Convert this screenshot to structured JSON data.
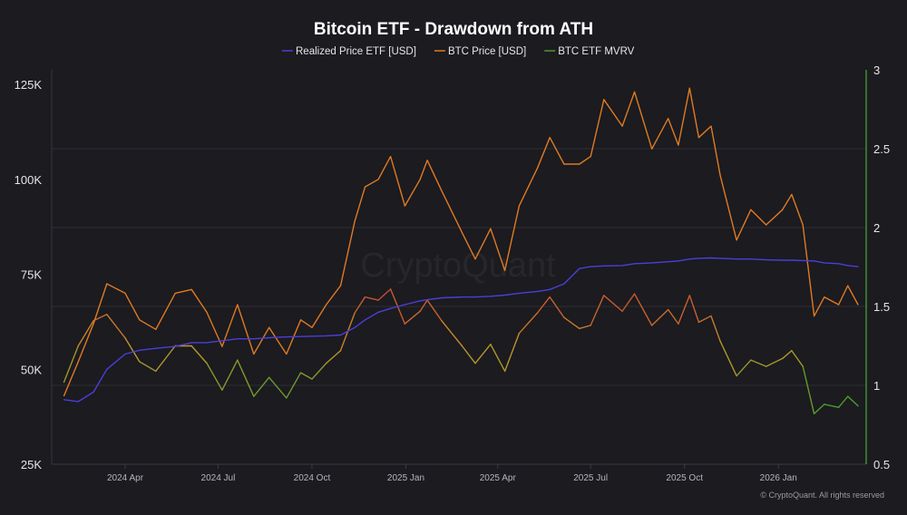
{
  "chart_data": {
    "type": "line",
    "title": "Bitcoin ETF - Drawdown from ATH",
    "legend_position": "top",
    "grid": true,
    "xlim": [
      "2024-01-20",
      "2026-03-28"
    ],
    "x_ticks": [
      {
        "date": "2024-04-01",
        "label": "2024 Apr"
      },
      {
        "date": "2024-07-01",
        "label": "2024 Jul"
      },
      {
        "date": "2024-10-01",
        "label": "2024 Oct"
      },
      {
        "date": "2025-01-01",
        "label": "2025 Jan"
      },
      {
        "date": "2025-04-01",
        "label": "2025 Apr"
      },
      {
        "date": "2025-07-01",
        "label": "2025 Jul"
      },
      {
        "date": "2025-10-01",
        "label": "2025 Oct"
      },
      {
        "date": "2026-01-01",
        "label": "2026 Jan"
      }
    ],
    "y_left": {
      "ylim": [
        25000,
        125000
      ],
      "ticks": [
        25000,
        50000,
        75000,
        100000,
        125000
      ],
      "tick_labels": [
        "25K",
        "50K",
        "75K",
        "100K",
        "125K"
      ]
    },
    "y_right": {
      "ylim": [
        0.5,
        3
      ],
      "ticks": [
        0.5,
        1,
        1.5,
        2,
        2.5,
        3
      ],
      "tick_labels": [
        "0.5",
        "1",
        "1.5",
        "2",
        "2.5",
        "3"
      ]
    },
    "x": [
      "2024-02-01",
      "2024-02-15",
      "2024-03-01",
      "2024-03-14",
      "2024-04-01",
      "2024-04-15",
      "2024-05-01",
      "2024-05-20",
      "2024-06-05",
      "2024-06-20",
      "2024-07-05",
      "2024-07-20",
      "2024-08-05",
      "2024-08-20",
      "2024-09-06",
      "2024-09-20",
      "2024-10-01",
      "2024-10-15",
      "2024-10-29",
      "2024-11-12",
      "2024-11-22",
      "2024-12-05",
      "2024-12-17",
      "2024-12-31",
      "2025-01-15",
      "2025-01-22",
      "2025-02-05",
      "2025-02-25",
      "2025-03-10",
      "2025-03-25",
      "2025-04-08",
      "2025-04-22",
      "2025-05-10",
      "2025-05-22",
      "2025-06-05",
      "2025-06-20",
      "2025-07-01",
      "2025-07-14",
      "2025-08-01",
      "2025-08-13",
      "2025-08-30",
      "2025-09-15",
      "2025-09-25",
      "2025-10-06",
      "2025-10-15",
      "2025-10-27",
      "2025-11-05",
      "2025-11-21",
      "2025-12-05",
      "2025-12-20",
      "2026-01-05",
      "2026-01-14",
      "2026-01-25",
      "2026-02-05",
      "2026-02-15",
      "2026-03-01",
      "2026-03-10",
      "2026-03-20"
    ],
    "series": [
      {
        "name": "Realized Price ETF [USD]",
        "axis": "left",
        "color": "#4b3fd6",
        "values": [
          42000,
          41500,
          44000,
          50000,
          54000,
          55000,
          55500,
          56000,
          57000,
          57000,
          57500,
          58000,
          58000,
          58300,
          58500,
          58600,
          58700,
          58800,
          59000,
          61000,
          63000,
          65000,
          66000,
          67000,
          68000,
          68300,
          68800,
          69000,
          69000,
          69200,
          69500,
          70000,
          70500,
          71000,
          72500,
          76500,
          77000,
          77200,
          77300,
          77800,
          78000,
          78300,
          78500,
          79000,
          79200,
          79300,
          79200,
          79000,
          79000,
          78800,
          78700,
          78700,
          78600,
          78500,
          78000,
          77800,
          77300,
          77000
        ]
      },
      {
        "name": "BTC Price [USD]",
        "axis": "left",
        "color": "#e07a22",
        "values": [
          43000,
          52000,
          62000,
          72500,
          70000,
          63000,
          60500,
          70000,
          71000,
          65000,
          56000,
          67000,
          54000,
          61000,
          54000,
          63000,
          61000,
          67000,
          72000,
          89000,
          98000,
          100000,
          106000,
          93000,
          100000,
          105000,
          97000,
          86000,
          79000,
          87000,
          76000,
          93000,
          103000,
          111000,
          104000,
          104000,
          106000,
          121000,
          114000,
          123000,
          108000,
          116000,
          109000,
          124000,
          111000,
          114000,
          101000,
          84000,
          92000,
          88000,
          92000,
          96000,
          88000,
          64000,
          69000,
          67000,
          72000,
          67000
        ]
      },
      {
        "name": "BTC ETF MVRV",
        "axis": "right",
        "color": "#4e9a2c",
        "values": [
          1.02,
          1.25,
          1.41,
          1.45,
          1.3,
          1.15,
          1.09,
          1.25,
          1.25,
          1.14,
          0.97,
          1.16,
          0.93,
          1.05,
          0.92,
          1.08,
          1.04,
          1.14,
          1.22,
          1.46,
          1.56,
          1.54,
          1.61,
          1.39,
          1.47,
          1.54,
          1.41,
          1.25,
          1.14,
          1.26,
          1.09,
          1.33,
          1.46,
          1.56,
          1.43,
          1.36,
          1.38,
          1.57,
          1.47,
          1.58,
          1.38,
          1.48,
          1.39,
          1.57,
          1.4,
          1.44,
          1.28,
          1.06,
          1.16,
          1.12,
          1.17,
          1.22,
          1.12,
          0.82,
          0.88,
          0.86,
          0.93,
          0.87
        ]
      }
    ]
  },
  "watermark": "CryptoQuant",
  "footer": "© CryptoQuant. All rights reserved",
  "colors": {
    "background": "#1b1b20",
    "grid": "#2c2c33",
    "text": "#e6e6e6",
    "right_axis": "#3f8f2a"
  }
}
